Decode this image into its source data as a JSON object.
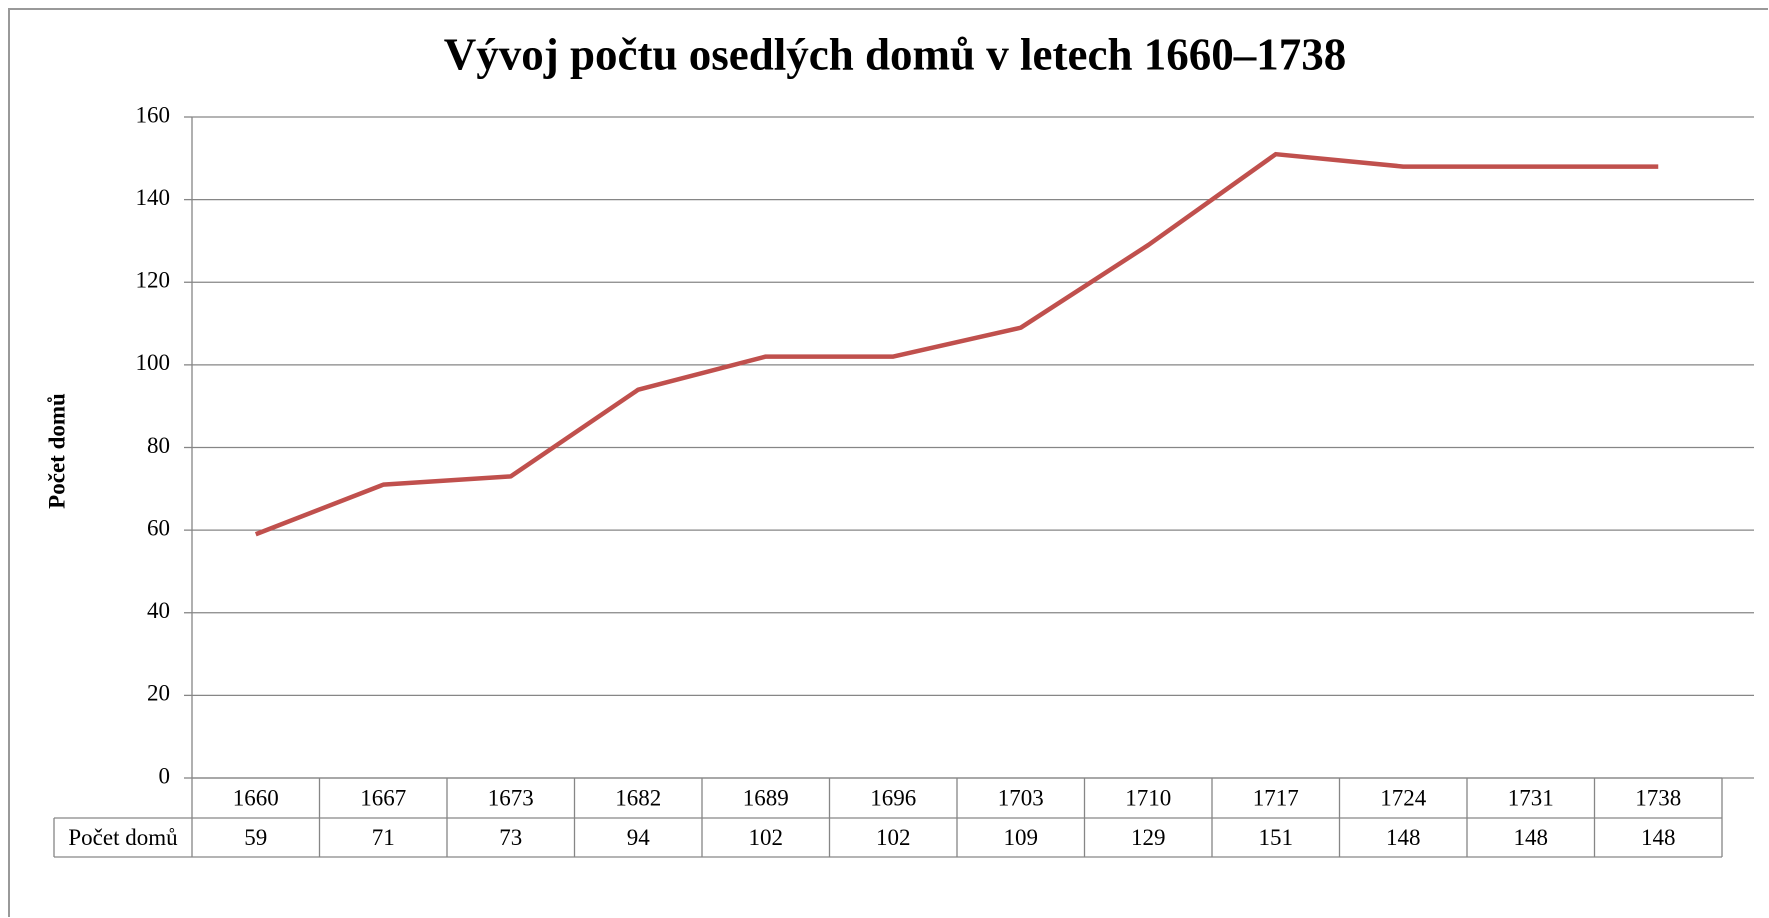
{
  "chart_data": {
    "type": "line",
    "title": "Vývoj počtu osedlých domů v letech 1660–1738",
    "y_label": "Počet domů",
    "categories": [
      "1660",
      "1667",
      "1673",
      "1682",
      "1689",
      "1696",
      "1703",
      "1710",
      "1717",
      "1724",
      "1731",
      "1738"
    ],
    "series": [
      {
        "name": "Počet domů",
        "color": "#c0504d",
        "values": [
          59,
          71,
          73,
          94,
          102,
          102,
          109,
          129,
          151,
          148,
          148,
          148
        ]
      }
    ],
    "ylim": [
      0,
      160
    ],
    "yticks": [
      0,
      20,
      40,
      60,
      80,
      100,
      120,
      140,
      160
    ],
    "grid": true,
    "data_table": true
  }
}
